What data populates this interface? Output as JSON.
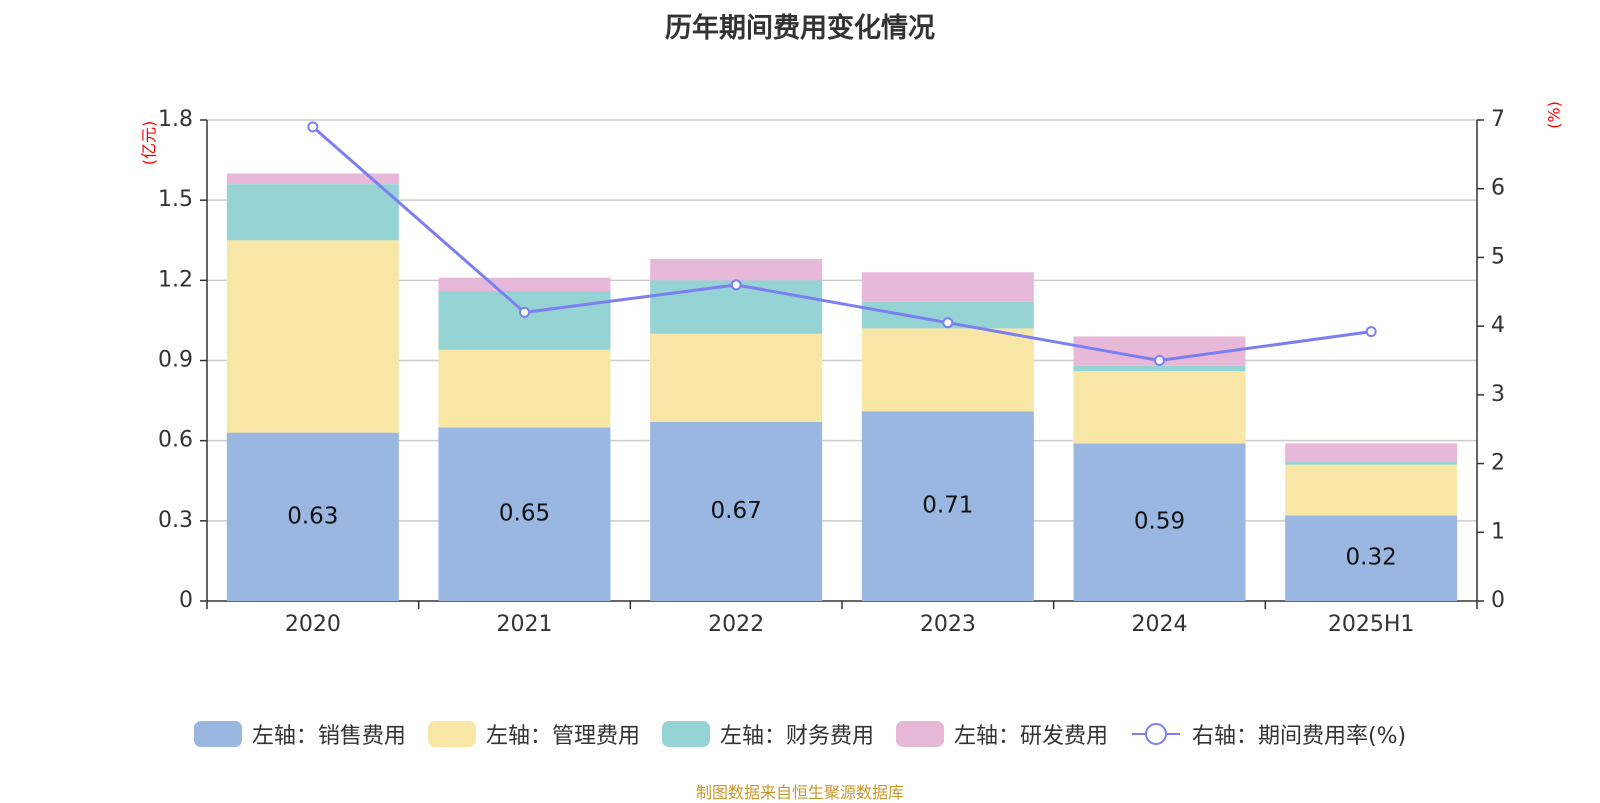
{
  "chart_data": {
    "type": "bar",
    "title": "历年期间费用变化情况",
    "categories": [
      "2020",
      "2021",
      "2022",
      "2023",
      "2024",
      "2025H1"
    ],
    "y_left_unit": "(亿元)",
    "y_right_unit": "(%)",
    "y_left_ticks": [
      "0",
      "0.3",
      "0.6",
      "0.9",
      "1.2",
      "1.5",
      "1.8"
    ],
    "y_right_ticks": [
      "0",
      "1",
      "2",
      "3",
      "4",
      "5",
      "6",
      "7"
    ],
    "ylim_left": [
      0,
      1.8
    ],
    "ylim_right": [
      0,
      7
    ],
    "grid": true,
    "legend_position": "bottom",
    "stacked_series": [
      {
        "name": "左轴：销售费用",
        "color": "#9ab7e1",
        "values": [
          0.63,
          0.65,
          0.67,
          0.71,
          0.59,
          0.32
        ],
        "labels": [
          "0.63",
          "0.65",
          "0.67",
          "0.71",
          "0.59",
          "0.32"
        ]
      },
      {
        "name": "左轴：管理费用",
        "color": "#f7e6a6",
        "values": [
          0.72,
          0.29,
          0.33,
          0.31,
          0.27,
          0.19
        ]
      },
      {
        "name": "左轴：财务费用",
        "color": "#96d3d4",
        "values": [
          0.21,
          0.22,
          0.2,
          0.1,
          0.02,
          0.01
        ]
      },
      {
        "name": "左轴：研发费用",
        "color": "#e8b8d9",
        "values": [
          0.04,
          0.05,
          0.08,
          0.11,
          0.11,
          0.07
        ]
      }
    ],
    "line_series": {
      "name": "右轴：期间费用率(%)",
      "color": "#7b7fef",
      "values": [
        6.9,
        4.2,
        4.6,
        4.05,
        3.5,
        3.92
      ]
    }
  },
  "source_note": "制图数据来自恒生聚源数据库"
}
